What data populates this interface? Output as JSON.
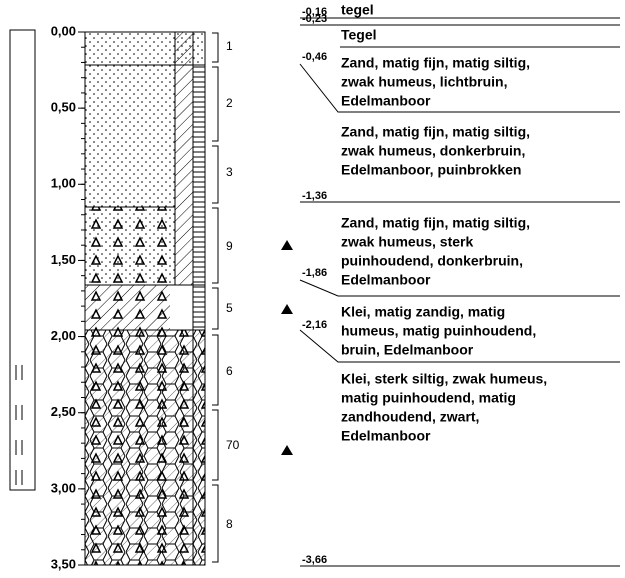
{
  "depth_axis": {
    "ylim": [
      0,
      3.5
    ],
    "ticks": [
      {
        "value": 0,
        "label": "0,00"
      },
      {
        "value": 0.5,
        "label": "0,50"
      },
      {
        "value": 1,
        "label": "1,00"
      },
      {
        "value": 1.5,
        "label": "1,50"
      },
      {
        "value": 2,
        "label": "2,00"
      },
      {
        "value": 2.5,
        "label": "2,50"
      },
      {
        "value": 3,
        "label": "3,00"
      },
      {
        "value": 3.5,
        "label": "3,50"
      }
    ]
  },
  "samples": [
    "1",
    "2",
    "3",
    "9",
    "5",
    "6",
    "70",
    "8"
  ],
  "depth_labels": [
    "-0,16",
    "-0,23",
    "-0,46",
    "-1,36",
    "-1,86",
    "-2,16",
    "-3,66"
  ],
  "descriptions": [
    [
      "tegel"
    ],
    [
      "Tegel"
    ],
    [
      "Zand, matig fijn, matig siltig,",
      "zwak humeus, lichtbruin,",
      "Edelmanboor"
    ],
    [
      "Zand, matig fijn, matig siltig,",
      "zwak humeus, donkerbruin,",
      "Edelmanboor, puinbrokken"
    ],
    [
      "Zand, matig fijn, matig siltig,",
      "zwak humeus, sterk",
      "puinhoudend, donkerbruin,",
      "Edelmanboor"
    ],
    [
      "Klei, matig zandig, matig",
      "humeus, matig puinhoudend,",
      "bruin, Edelmanboor"
    ],
    [
      "Klei, sterk siltig, zwak humeus,",
      "matig puinhoudend, matig",
      "zandhoudend, zwart,",
      "Edelmanboor"
    ]
  ]
}
